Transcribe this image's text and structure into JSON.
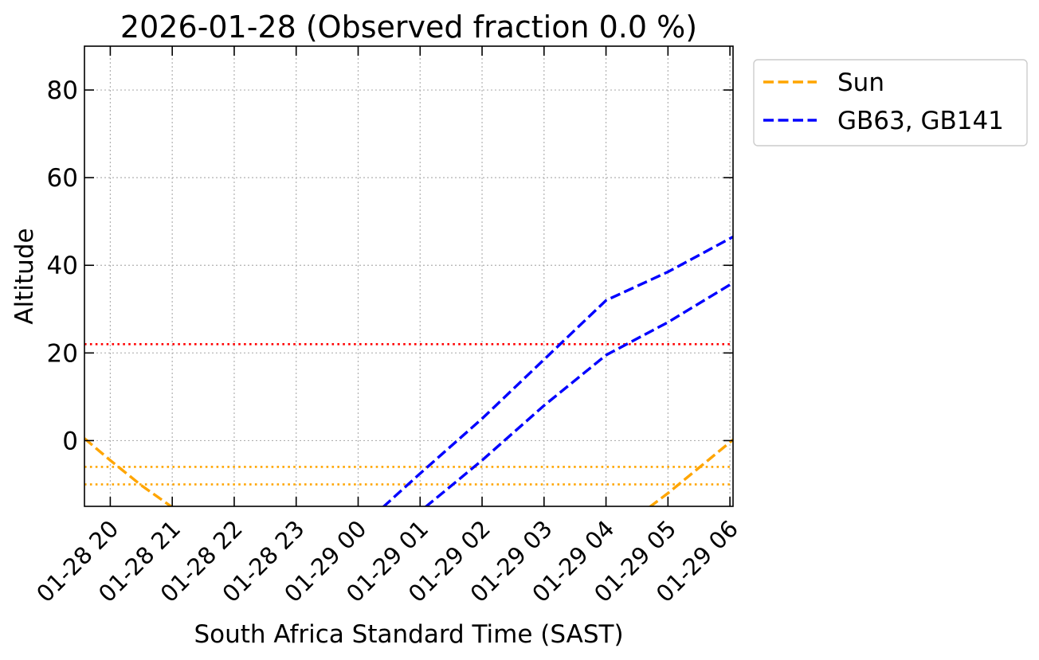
{
  "chart_data": {
    "type": "line",
    "title": "2026-01-28 (Observed fraction 0.0 %)",
    "xlabel": "South Africa Standard Time (SAST)",
    "ylabel": "Altitude",
    "x_range": [
      "2026-01-28 19:35",
      "2026-01-29 06:03"
    ],
    "ylim": [
      -15,
      90
    ],
    "yticks": [
      0,
      20,
      40,
      60,
      80
    ],
    "xticks": [
      {
        "t": "2026-01-28 20:00",
        "label": "01-28 20"
      },
      {
        "t": "2026-01-28 21:00",
        "label": "01-28 21"
      },
      {
        "t": "2026-01-28 22:00",
        "label": "01-28 22"
      },
      {
        "t": "2026-01-28 23:00",
        "label": "01-28 23"
      },
      {
        "t": "2026-01-29 00:00",
        "label": "01-29 00"
      },
      {
        "t": "2026-01-29 01:00",
        "label": "01-29 01"
      },
      {
        "t": "2026-01-29 02:00",
        "label": "01-29 02"
      },
      {
        "t": "2026-01-29 03:00",
        "label": "01-29 03"
      },
      {
        "t": "2026-01-29 04:00",
        "label": "01-29 04"
      },
      {
        "t": "2026-01-29 05:00",
        "label": "01-29 05"
      },
      {
        "t": "2026-01-29 06:00",
        "label": "01-29 06"
      }
    ],
    "grid": true,
    "legend_position": "outside-top-right",
    "series": [
      {
        "name": "Sun",
        "color": "#ffa500",
        "style": "dashed",
        "segments": [
          [
            {
              "t": "2026-01-28 19:35",
              "y": 0.5
            },
            {
              "t": "2026-01-28 20:00",
              "y": -4.5
            },
            {
              "t": "2026-01-28 20:30",
              "y": -10.2
            },
            {
              "t": "2026-01-28 21:00",
              "y": -15.2
            }
          ],
          [
            {
              "t": "2026-01-29 04:42",
              "y": -15.2
            },
            {
              "t": "2026-01-29 05:00",
              "y": -12.0
            },
            {
              "t": "2026-01-29 05:30",
              "y": -6.2
            },
            {
              "t": "2026-01-29 06:03",
              "y": 0.2
            }
          ]
        ]
      },
      {
        "name": "GB63, GB141",
        "color": "#0000ff",
        "style": "dashed",
        "segments": [
          [
            {
              "t": "2026-01-29 00:24",
              "y": -15.2
            },
            {
              "t": "2026-01-29 01:00",
              "y": -7.5
            },
            {
              "t": "2026-01-29 02:00",
              "y": 5.0
            },
            {
              "t": "2026-01-29 03:00",
              "y": 18.5
            },
            {
              "t": "2026-01-29 04:00",
              "y": 32.0
            },
            {
              "t": "2026-01-29 05:00",
              "y": 38.5
            },
            {
              "t": "2026-01-29 06:03",
              "y": 46.5
            }
          ],
          [
            {
              "t": "2026-01-29 01:05",
              "y": -15.2
            },
            {
              "t": "2026-01-29 02:00",
              "y": -4.5
            },
            {
              "t": "2026-01-29 03:00",
              "y": 8.0
            },
            {
              "t": "2026-01-29 04:00",
              "y": 19.5
            },
            {
              "t": "2026-01-29 05:00",
              "y": 27.0
            },
            {
              "t": "2026-01-29 06:03",
              "y": 36.0
            }
          ]
        ]
      }
    ],
    "reference_lines": [
      {
        "y": 22,
        "color": "#ff0000",
        "style": "dotted"
      },
      {
        "y": -6,
        "color": "#ffa500",
        "style": "dotted"
      },
      {
        "y": -10,
        "color": "#ffa500",
        "style": "dotted"
      }
    ]
  }
}
